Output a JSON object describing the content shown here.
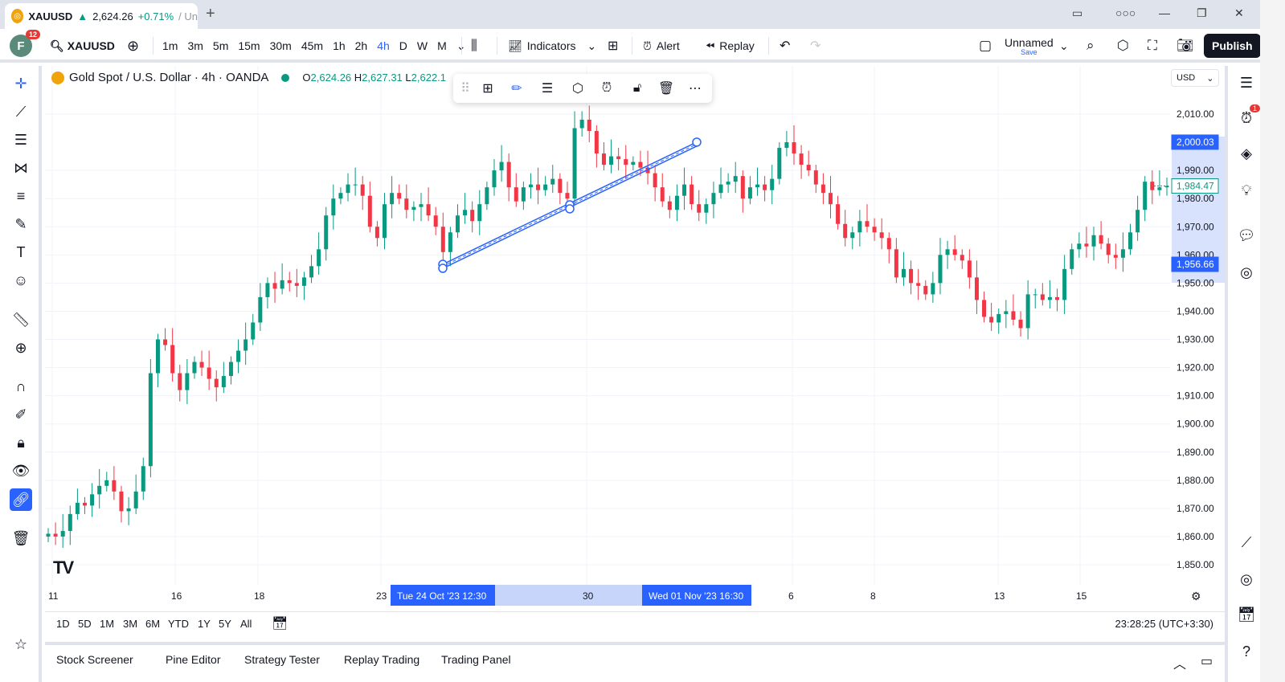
{
  "browser_tab": {
    "symbol": "XAUUSD",
    "price": "2,624.26",
    "change": "+0.71%",
    "rest": "/ Un"
  },
  "toolbar": {
    "avatar_letter": "F",
    "avatar_badge": "12",
    "symbol": "XAUUSD",
    "intervals": [
      "1m",
      "3m",
      "5m",
      "15m",
      "30m",
      "45m",
      "1h",
      "2h",
      "4h",
      "D",
      "W",
      "M"
    ],
    "active_interval": "4h",
    "indicators_label": "Indicators",
    "alert_label": "Alert",
    "replay_label": "Replay",
    "layout_name": "Unnamed",
    "save_label": "Save",
    "publish_label": "Publish"
  },
  "legend": {
    "title": "Gold Spot / U.S. Dollar · 4h · OANDA",
    "open_label": "O",
    "open": "2,624.26",
    "high_label": "H",
    "high": "2,627.31",
    "low_label": "L",
    "low": "2,622.1"
  },
  "currency": "USD",
  "right_badge": "1",
  "chart_data": {
    "type": "candlestick",
    "y_ticks": [
      "2,010.00",
      "1,990.00",
      "1,980.00",
      "1,970.00",
      "1,960.00",
      "1,950.00",
      "1,940.00",
      "1,930.00",
      "1,920.00",
      "1,910.00",
      "1,900.00",
      "1,890.00",
      "1,880.00",
      "1,870.00",
      "1,860.00",
      "1,850.00"
    ],
    "y_range": [
      1845,
      2012
    ],
    "price_labels": {
      "line_top": "2,000.03",
      "last_price": "1,984.47",
      "line_bottom": "1,956.66"
    },
    "last_price_value": 1984.47,
    "x_ticks": [
      "11",
      "16",
      "18",
      "23",
      "30",
      "6",
      "8",
      "13",
      "15"
    ],
    "x_highlight_start": "Tue 24 Oct '23   12:30",
    "x_highlight_end": "Wed 01 Nov '23   16:30",
    "trend_channel": {
      "start_price": 1956.66,
      "end_price": 2000.03
    },
    "series": [
      1861,
      1860,
      1862,
      1868,
      1872,
      1871,
      1875,
      1878,
      1880,
      1876,
      1869,
      1870,
      1876,
      1885,
      1918,
      1930,
      1928,
      1918,
      1912,
      1918,
      1922,
      1920,
      1916,
      1913,
      1917,
      1922,
      1926,
      1930,
      1936,
      1945,
      1950,
      1948,
      1951,
      1950,
      1949,
      1952,
      1956,
      1962,
      1974,
      1980,
      1982,
      1985,
      1985,
      1981,
      1970,
      1966,
      1978,
      1982,
      1980,
      1976,
      1977,
      1978,
      1974,
      1970,
      1961,
      1968,
      1974,
      1976,
      1972,
      1978,
      1984,
      1990,
      1993,
      1984,
      1979,
      1984,
      1985,
      1983,
      1985,
      1987,
      1982,
      1980,
      2005,
      2008,
      2004,
      1996,
      1992,
      1995,
      1994,
      1992,
      1993,
      1991,
      1989,
      1984,
      1979,
      1976,
      1981,
      1985,
      1978,
      1975,
      1978,
      1982,
      1985,
      1986,
      1988,
      1980,
      1984,
      1985,
      1983,
      1987,
      1998,
      2000,
      1996,
      1992,
      1990,
      1985,
      1982,
      1978,
      1971,
      1966,
      1968,
      1972,
      1970,
      1968,
      1966,
      1962,
      1952,
      1955,
      1950,
      1949,
      1946,
      1950,
      1960,
      1962,
      1960,
      1958,
      1952,
      1944,
      1938,
      1936,
      1939,
      1940,
      1937,
      1934,
      1946,
      1946,
      1944,
      1945,
      1944,
      1955,
      1962,
      1964,
      1963,
      1967,
      1964,
      1960,
      1959,
      1962,
      1968,
      1976,
      1986,
      1983,
      1984,
      1984.47
    ]
  },
  "range_buttons": [
    "1D",
    "5D",
    "1M",
    "3M",
    "6M",
    "YTD",
    "1Y",
    "5Y",
    "All"
  ],
  "clock": "23:28:25 (UTC+3:30)",
  "bottom_tabs": [
    "Stock Screener",
    "Pine Editor",
    "Strategy Tester",
    "Replay Trading",
    "Trading Panel"
  ]
}
